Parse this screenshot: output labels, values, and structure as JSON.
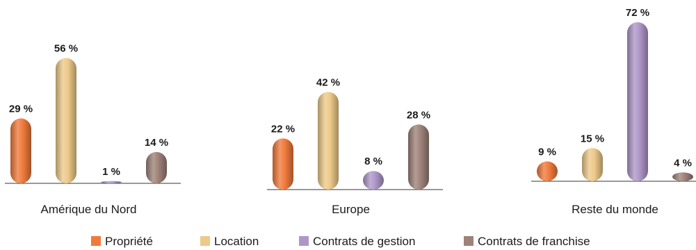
{
  "chart_data": {
    "type": "bar",
    "categories": [
      "Amérique du Nord",
      "Europe",
      "Reste du monde"
    ],
    "series": [
      {
        "name": "Propriété",
        "values": [
          29,
          22,
          9
        ],
        "color": "#f07a3c"
      },
      {
        "name": "Location",
        "values": [
          56,
          42,
          15
        ],
        "color": "#edc98a"
      },
      {
        "name": "Contrats de gestion",
        "values": [
          1,
          8,
          72
        ],
        "color": "#ae97c8"
      },
      {
        "name": "Contrats de franchise",
        "values": [
          14,
          28,
          4
        ],
        "color": "#9e8279"
      }
    ],
    "value_labels": [
      [
        "29 %",
        "56 %",
        "1 %",
        "14 %"
      ],
      [
        "22 %",
        "42 %",
        "8 %",
        "28 %"
      ],
      [
        "9 %",
        "15 %",
        "72 %",
        "4 %"
      ]
    ],
    "unit": "%",
    "ylim": [
      0,
      72
    ],
    "legend_position": "bottom-center",
    "grid": false
  }
}
